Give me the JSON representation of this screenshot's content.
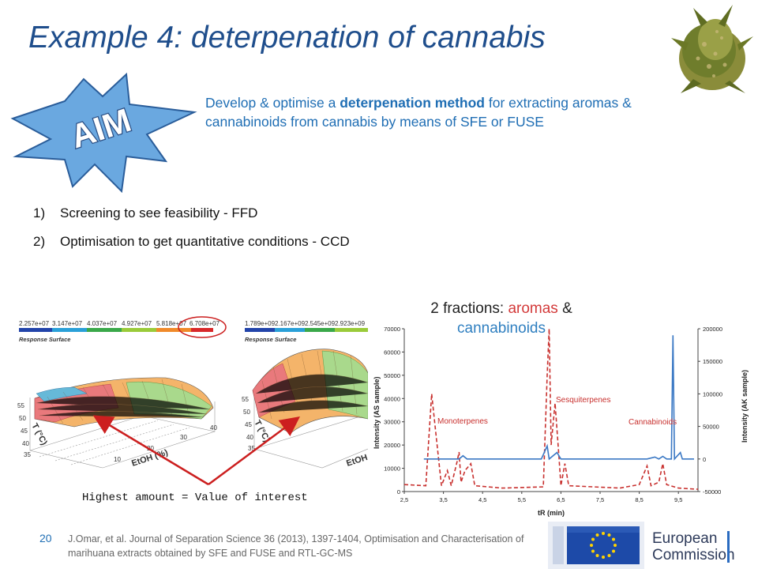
{
  "slide": {
    "title": "Example 4: deterpenation of cannabis",
    "aim_badge": "AIM",
    "aim_text": {
      "before": "Develop & optimise a ",
      "bold": "deterpenation method",
      "after": " for extracting aromas & cannabinoids from cannabis by means of SFE or FUSE"
    },
    "steps": [
      {
        "num": "1)",
        "text": "Screening to see feasibility - FFD"
      },
      {
        "num": "2)",
        "text": "Optimisation to get quantitative conditions - CCD"
      }
    ],
    "fractions": {
      "prefix": "2 fractions: ",
      "aromas": "aromas",
      "amp": " &",
      "cannabinoids": "cannabinoids"
    },
    "highest_label": "Highest amount = Value of interest",
    "slide_number": "20",
    "citation": "J.Omar, et al. Journal of Separation Science 36 (2013), 1397-1404, Optimisation and Characterisation of marihuana extracts obtained by SFE and FUSE and RTL-GC-MS",
    "ec_logo": {
      "line1": "European",
      "line2": "Commission"
    },
    "colors": {
      "title": "#1f4e8c",
      "aim_text": "#1f6eb4",
      "aromas": "#d33a3a",
      "cannabinoids": "#2f7fc0",
      "badge": "#6aa8e0",
      "arrow": "#cc1f1f"
    }
  },
  "surface_plots": {
    "left": {
      "legend_ticks": [
        "2.257e+07",
        "3.147e+07",
        "4.037e+07",
        "4.927e+07",
        "5.818e+07",
        "6.708e+07"
      ],
      "legend_title": "Response Surface",
      "z_ticks": [
        "55",
        "50",
        "45",
        "40",
        "35"
      ],
      "x_ticks": [
        "10",
        "20",
        "30",
        "40"
      ],
      "x_label": "EtOH (%)",
      "y_label": "T (°C)"
    },
    "right": {
      "legend_ticks": [
        "1.789e+09",
        "2.167e+09",
        "2.545e+09",
        "2.923e+09"
      ],
      "legend_title": "Response Surface",
      "z_ticks": [
        "55",
        "50",
        "45",
        "40",
        "35"
      ],
      "x_label": "EtOH",
      "y_label": "T (°C)"
    }
  },
  "chart_data": {
    "type": "line",
    "xlabel": "tR (min)",
    "ylabel_left": "Intensity (AS sample)",
    "ylabel_right": "Intensity (AK sample)",
    "xlim": [
      2.5,
      10
    ],
    "x_ticks": [
      "2,5",
      "3,5",
      "4,5",
      "5,5",
      "6,5",
      "7,5",
      "8,5",
      "9,5"
    ],
    "ylim_left": [
      0,
      70000
    ],
    "y_ticks_left": [
      "0",
      "10000",
      "20000",
      "30000",
      "40000",
      "50000",
      "60000",
      "70000"
    ],
    "ylim_right": [
      -50000,
      200000
    ],
    "y_ticks_right": [
      "-50000",
      "0",
      "50000",
      "100000",
      "150000",
      "200000"
    ],
    "annotations": [
      "Monoterpenes",
      "Sesquiterpenes",
      "Cannabinoids"
    ],
    "series": [
      {
        "axis": "left",
        "color": "#c8302e",
        "style": "dashed",
        "points": [
          [
            2.5,
            3000
          ],
          [
            3.05,
            2500
          ],
          [
            3.2,
            42000
          ],
          [
            3.3,
            26000
          ],
          [
            3.45,
            2500
          ],
          [
            3.6,
            9000
          ],
          [
            3.7,
            2500
          ],
          [
            3.85,
            13000
          ],
          [
            3.9,
            17000
          ],
          [
            3.95,
            4000
          ],
          [
            4.05,
            9000
          ],
          [
            4.2,
            12000
          ],
          [
            4.3,
            2500
          ],
          [
            5.0,
            1500
          ],
          [
            6.05,
            2000
          ],
          [
            6.15,
            50000
          ],
          [
            6.2,
            70000
          ],
          [
            6.25,
            20000
          ],
          [
            6.35,
            38000
          ],
          [
            6.45,
            15000
          ],
          [
            6.5,
            2500
          ],
          [
            6.6,
            12000
          ],
          [
            6.7,
            2500
          ],
          [
            8.0,
            1500
          ],
          [
            8.5,
            3000
          ],
          [
            8.7,
            11000
          ],
          [
            8.8,
            2500
          ],
          [
            9.0,
            4000
          ],
          [
            9.1,
            12000
          ],
          [
            9.2,
            3000
          ],
          [
            9.5,
            1500
          ],
          [
            10,
            1000
          ]
        ]
      },
      {
        "axis": "right",
        "color": "#3a78c4",
        "style": "solid",
        "points": [
          [
            3.0,
            0
          ],
          [
            3.9,
            0
          ],
          [
            4.0,
            5000
          ],
          [
            4.1,
            0
          ],
          [
            6.0,
            0
          ],
          [
            6.15,
            20000
          ],
          [
            6.2,
            0
          ],
          [
            6.4,
            10000
          ],
          [
            6.5,
            0
          ],
          [
            8.7,
            0
          ],
          [
            8.9,
            3000
          ],
          [
            9.0,
            0
          ],
          [
            9.1,
            4000
          ],
          [
            9.2,
            0
          ],
          [
            9.32,
            0
          ],
          [
            9.36,
            190000
          ],
          [
            9.4,
            0
          ],
          [
            9.55,
            10000
          ],
          [
            9.6,
            0
          ],
          [
            9.9,
            0
          ]
        ]
      }
    ]
  }
}
